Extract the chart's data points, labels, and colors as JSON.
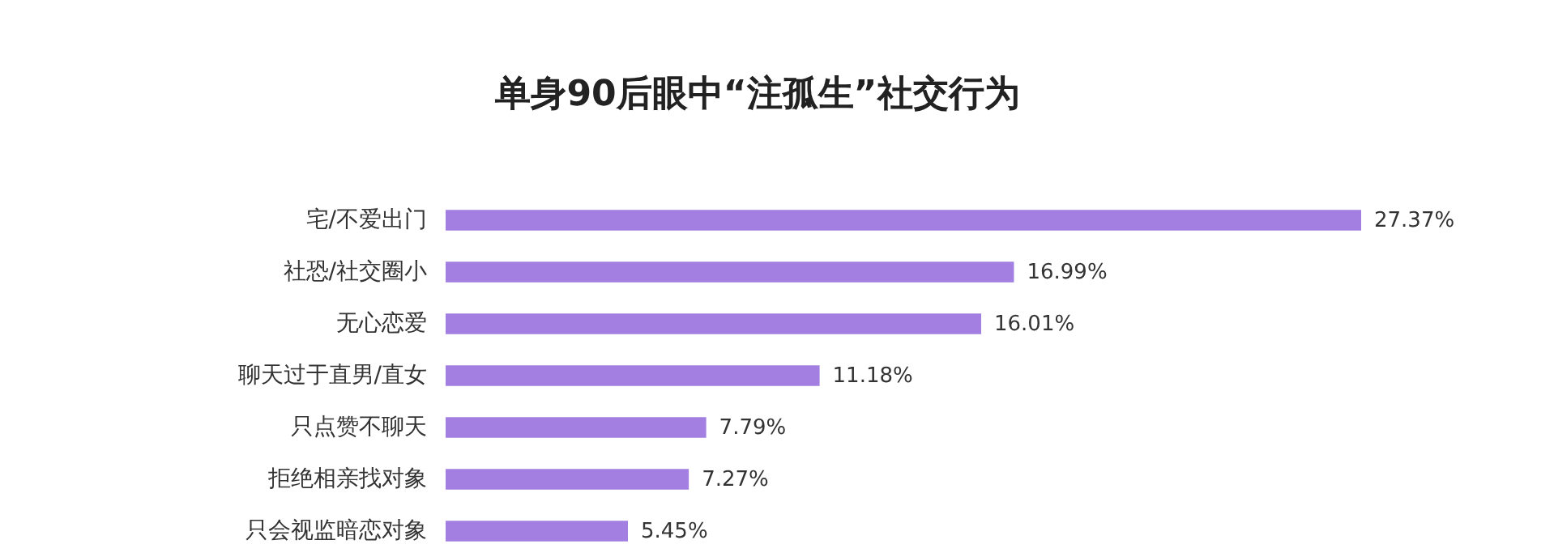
{
  "chart_data": {
    "type": "bar",
    "orientation": "horizontal",
    "title": "单身90后眼中“注孤生”社交行为",
    "categories": [
      "宅/不爱出门",
      "社恐/社交圈小",
      "无心恋爱",
      "聊天过于直男/直女",
      "只点赞不聊天",
      "拒绝相亲找对象",
      "只会视监暗恋对象"
    ],
    "values": [
      27.37,
      16.99,
      16.01,
      11.18,
      7.79,
      7.27,
      5.45
    ],
    "value_labels": [
      "27.37%",
      "16.99%",
      "16.01%",
      "11.18%",
      "7.79%",
      "7.27%",
      "5.45%"
    ],
    "color": "#a27fe0",
    "grid": false
  }
}
